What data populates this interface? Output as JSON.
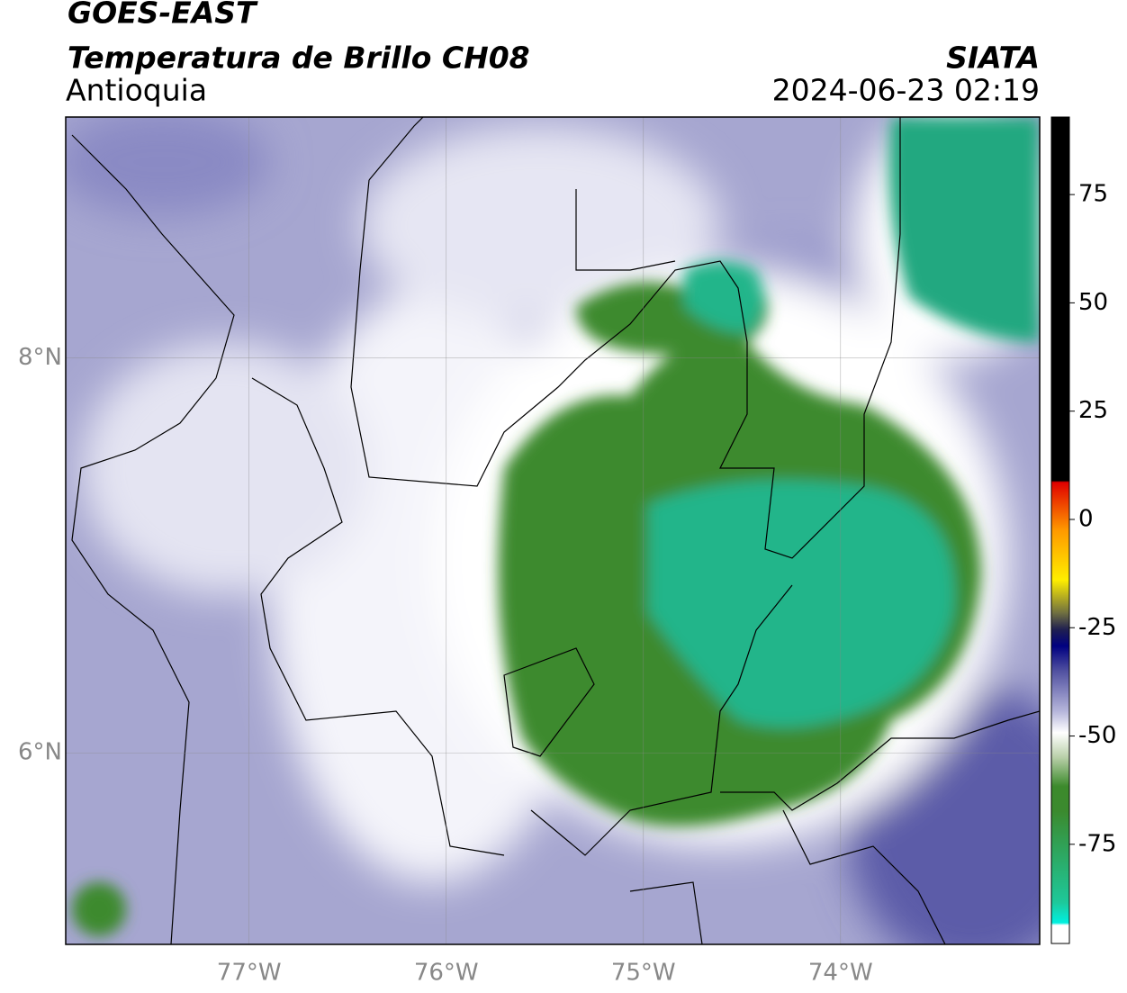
{
  "header": {
    "title": "GOES-EAST",
    "subtitle": "Temperatura de Brillo CH08",
    "region": "Antioquia",
    "source": "SIATA",
    "timestamp": "2024-06-23 02:19"
  },
  "map": {
    "xlim": [
      -77.93,
      -72.99
    ],
    "ylim": [
      5.03,
      9.22
    ],
    "xticks": [
      {
        "value": -77,
        "label": "77°W"
      },
      {
        "value": -76,
        "label": "76°W"
      },
      {
        "value": -75,
        "label": "75°W"
      },
      {
        "value": -74,
        "label": "74°W"
      }
    ],
    "yticks": [
      {
        "value": 8,
        "label": "8°N"
      },
      {
        "value": 6,
        "label": "6°N"
      }
    ],
    "grid": true
  },
  "colorbar": {
    "clim": [
      -97.9,
      92.9
    ],
    "ticks": [
      75,
      50,
      25,
      0,
      -25,
      -50,
      -75
    ]
  }
}
